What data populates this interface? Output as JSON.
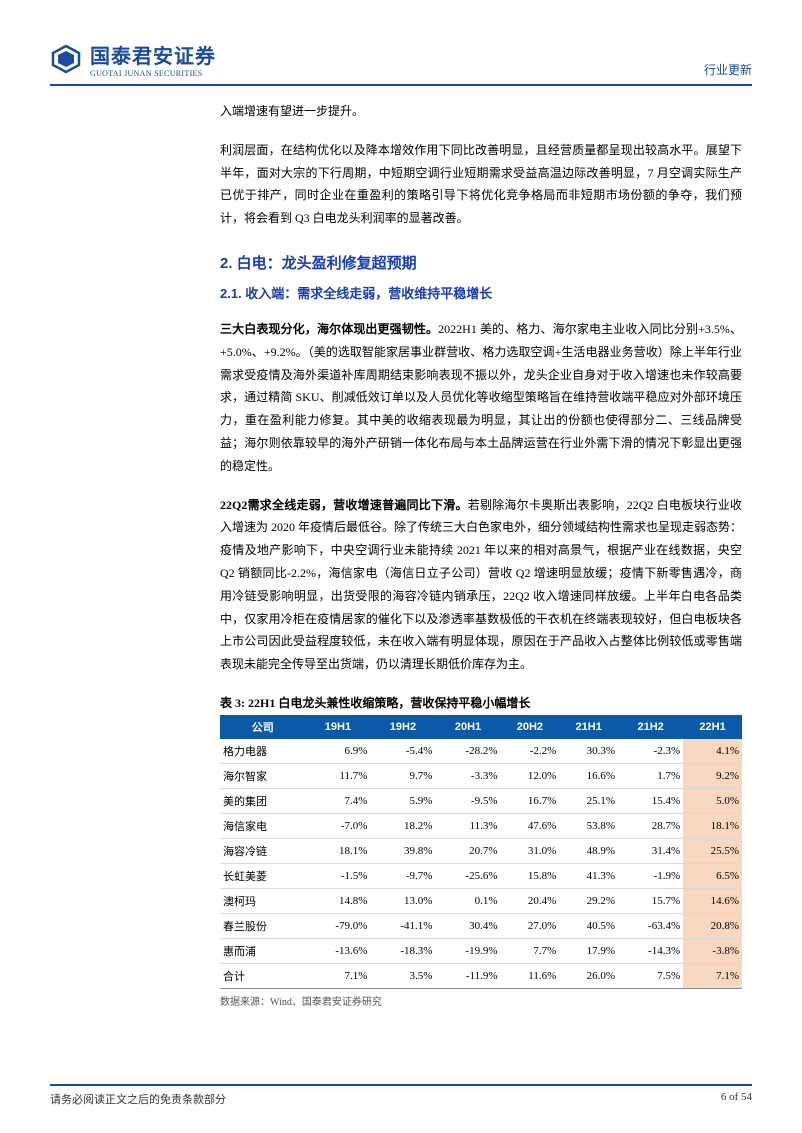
{
  "header": {
    "logo_cn": "国泰君安证券",
    "logo_en": "GUOTAI JUNAN SECURITIES",
    "category": "行业更新"
  },
  "body": {
    "intro_tail": "入端增速有望进一步提升。",
    "para1": "利润层面，在结构优化以及降本增效作用下同比改善明显，且经营质量都呈现出较高水平。展望下半年，面对大宗的下行周期，中短期空调行业短期需求受益高温边际改善明显，7 月空调实际生产已优于排产，同时企业在重盈利的策略引导下将优化竞争格局而非短期市场份额的争夺，我们预计，将会看到 Q3 白电龙头利润率的显著改善。",
    "h2": "2.  白电：龙头盈利修复超预期",
    "h3": "2.1.  收入端：需求全线走弱，营收维持平稳增长",
    "para2_lead": "三大白表现分化，海尔体现出更强韧性。",
    "para2_rest": "2022H1 美的、格力、海尔家电主业收入同比分别+3.5%、+5.0%、+9.2%。（美的选取智能家居事业群营收、格力选取空调+生活电器业务营收）除上半年行业需求受疫情及海外渠道补库周期结束影响表现不振以外，龙头企业自身对于收入增速也未作较高要求，通过精简 SKU、削减低效订单以及人员优化等收缩型策略旨在维持营收端平稳应对外部环境压力，重在盈利能力修复。其中美的收缩表现最为明显，其让出的份额也使得部分二、三线品牌受益；海尔则依靠较早的海外产研销一体化布局与本土品牌运营在行业外需下滑的情况下彰显出更强的稳定性。",
    "para3_lead": "22Q2需求全线走弱，营收增速普遍同比下滑。",
    "para3_rest": "若剔除海尔卡奥斯出表影响，22Q2 白电板块行业收入增速为 2020 年疫情后最低谷。除了传统三大白色家电外，细分领域结构性需求也呈现走弱态势：疫情及地产影响下，中央空调行业未能持续 2021 年以来的相对高景气，根据产业在线数据，央空 Q2 销额同比-2.2%，海信家电（海信日立子公司）营收 Q2 增速明显放缓；疫情下新零售遇冷，商用冷链受影响明显，出货受限的海容冷链内销承压，22Q2 收入增速同样放缓。上半年白电各品类中，仅家用冷柜在疫情居家的催化下以及渗透率基数极低的干衣机在终端表现较好，但白电板块各上市公司因此受益程度较低，未在收入端有明显体现，原因在于产品收入占整体比例较低或零售端表现未能完全传导至出货端，仍以清理长期低价库存为主。"
  },
  "table": {
    "caption": "表 3: 22H1 白电龙头兼性收缩策略，营收保持平稳小幅增长",
    "columns": [
      "公司",
      "19H1",
      "19H2",
      "20H1",
      "20H2",
      "21H1",
      "21H2",
      "22H1"
    ],
    "rows": [
      [
        "格力电器",
        "6.9%",
        "-5.4%",
        "-28.2%",
        "-2.2%",
        "30.3%",
        "-2.3%",
        "4.1%"
      ],
      [
        "海尔智家",
        "11.7%",
        "9.7%",
        "-3.3%",
        "12.0%",
        "16.6%",
        "1.7%",
        "9.2%"
      ],
      [
        "美的集团",
        "7.4%",
        "5.9%",
        "-9.5%",
        "16.7%",
        "25.1%",
        "15.4%",
        "5.0%"
      ],
      [
        "海信家电",
        "-7.0%",
        "18.2%",
        "11.3%",
        "47.6%",
        "53.8%",
        "28.7%",
        "18.1%"
      ],
      [
        "海容冷链",
        "18.1%",
        "39.8%",
        "20.7%",
        "31.0%",
        "48.9%",
        "31.4%",
        "25.5%"
      ],
      [
        "长虹美菱",
        "-1.5%",
        "-9.7%",
        "-25.6%",
        "15.8%",
        "41.3%",
        "-1.9%",
        "6.5%"
      ],
      [
        "澳柯玛",
        "14.8%",
        "13.0%",
        "0.1%",
        "20.4%",
        "29.2%",
        "15.7%",
        "14.6%"
      ],
      [
        "春兰股份",
        "-79.0%",
        "-41.1%",
        "30.4%",
        "27.0%",
        "40.5%",
        "-63.4%",
        "20.8%"
      ],
      [
        "惠而浦",
        "-13.6%",
        "-18.3%",
        "-19.9%",
        "7.7%",
        "17.9%",
        "-14.3%",
        "-3.8%"
      ]
    ],
    "total_row": [
      "合计",
      "7.1%",
      "3.5%",
      "-11.9%",
      "11.6%",
      "26.0%",
      "7.5%",
      "7.1%"
    ],
    "highlight_col": 7,
    "header_bg": "#0a5aa8",
    "header_fg": "#ffffff",
    "highlight_bg": "#fad7c0",
    "source": "数据来源：Wind、国泰君安证券研究"
  },
  "footer": {
    "disclaimer": "请务必阅读正文之后的免责条款部分",
    "page": "6 of 54"
  }
}
